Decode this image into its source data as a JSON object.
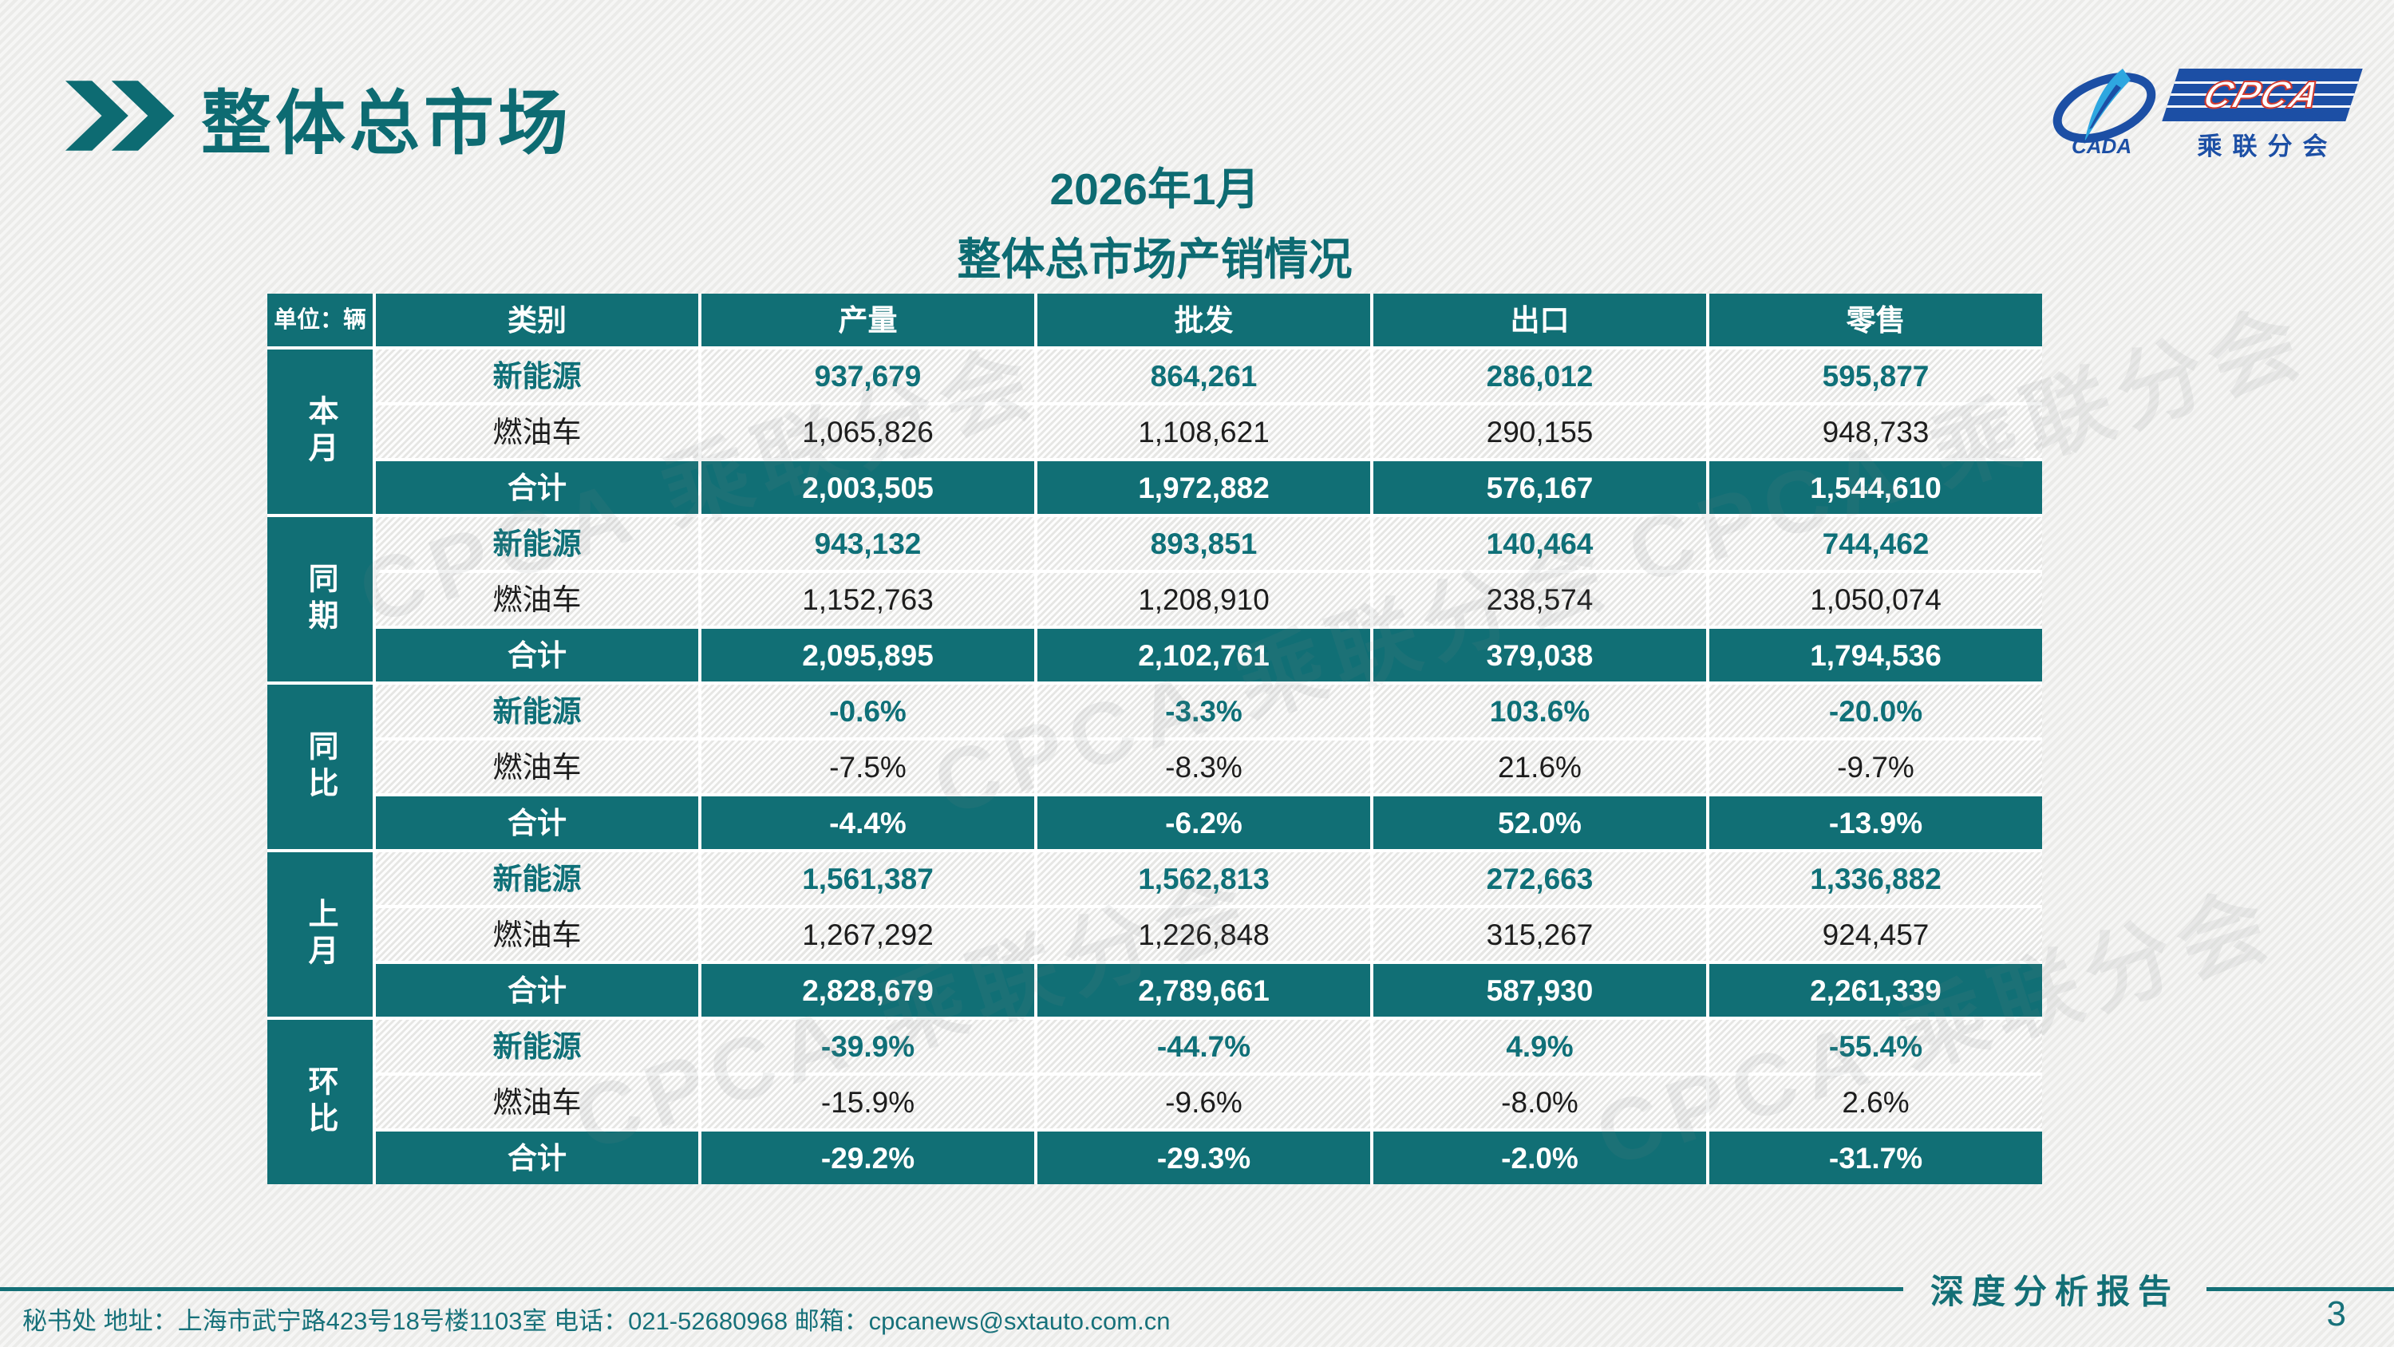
{
  "slide": {
    "title": "整体总市场",
    "subtitle_line1": "2026年1月",
    "subtitle_line2": "整体总市场产销情况",
    "footer_left": "秘书处  地址：上海市武宁路423号18号楼1103室 电话：021-52680968  邮箱：cpcanews@sxtauto.com.cn",
    "footer_right": "深度分析报告",
    "page_number": "3",
    "watermark": "CPCA 乘联分会"
  },
  "logo": {
    "cpca": "CPCA",
    "cada": "CADA",
    "branch": "乘联分会"
  },
  "colors": {
    "teal": "#116f75",
    "title_teal": "#0d6b72",
    "logo_blue": "#1c4fa5",
    "logo_red": "#d23b2f",
    "swoosh_blue": "#2ea7e0"
  },
  "table": {
    "unit_label": "单位：辆",
    "columns": [
      "类别",
      "产量",
      "批发",
      "出口",
      "零售"
    ],
    "groups": [
      {
        "label": "本月",
        "rows": [
          {
            "type": "ne",
            "category": "新能源",
            "values": [
              "937,679",
              "864,261",
              "286,012",
              "595,877"
            ]
          },
          {
            "type": "fuel",
            "category": "燃油车",
            "values": [
              "1,065,826",
              "1,108,621",
              "290,155",
              "948,733"
            ]
          },
          {
            "type": "total",
            "category": "合计",
            "values": [
              "2,003,505",
              "1,972,882",
              "576,167",
              "1,544,610"
            ]
          }
        ]
      },
      {
        "label": "同期",
        "rows": [
          {
            "type": "ne",
            "category": "新能源",
            "values": [
              "943,132",
              "893,851",
              "140,464",
              "744,462"
            ]
          },
          {
            "type": "fuel",
            "category": "燃油车",
            "values": [
              "1,152,763",
              "1,208,910",
              "238,574",
              "1,050,074"
            ]
          },
          {
            "type": "total",
            "category": "合计",
            "values": [
              "2,095,895",
              "2,102,761",
              "379,038",
              "1,794,536"
            ]
          }
        ]
      },
      {
        "label": "同比",
        "rows": [
          {
            "type": "ne",
            "category": "新能源",
            "values": [
              "-0.6%",
              "-3.3%",
              "103.6%",
              "-20.0%"
            ]
          },
          {
            "type": "fuel",
            "category": "燃油车",
            "values": [
              "-7.5%",
              "-8.3%",
              "21.6%",
              "-9.7%"
            ]
          },
          {
            "type": "total",
            "category": "合计",
            "values": [
              "-4.4%",
              "-6.2%",
              "52.0%",
              "-13.9%"
            ]
          }
        ]
      },
      {
        "label": "上月",
        "rows": [
          {
            "type": "ne",
            "category": "新能源",
            "values": [
              "1,561,387",
              "1,562,813",
              "272,663",
              "1,336,882"
            ]
          },
          {
            "type": "fuel",
            "category": "燃油车",
            "values": [
              "1,267,292",
              "1,226,848",
              "315,267",
              "924,457"
            ]
          },
          {
            "type": "total",
            "category": "合计",
            "values": [
              "2,828,679",
              "2,789,661",
              "587,930",
              "2,261,339"
            ]
          }
        ]
      },
      {
        "label": "环比",
        "rows": [
          {
            "type": "ne",
            "category": "新能源",
            "values": [
              "-39.9%",
              "-44.7%",
              "4.9%",
              "-55.4%"
            ]
          },
          {
            "type": "fuel",
            "category": "燃油车",
            "values": [
              "-15.9%",
              "-9.6%",
              "-8.0%",
              "2.6%"
            ]
          },
          {
            "type": "total",
            "category": "合计",
            "values": [
              "-29.2%",
              "-29.3%",
              "-2.0%",
              "-31.7%"
            ]
          }
        ]
      }
    ]
  }
}
